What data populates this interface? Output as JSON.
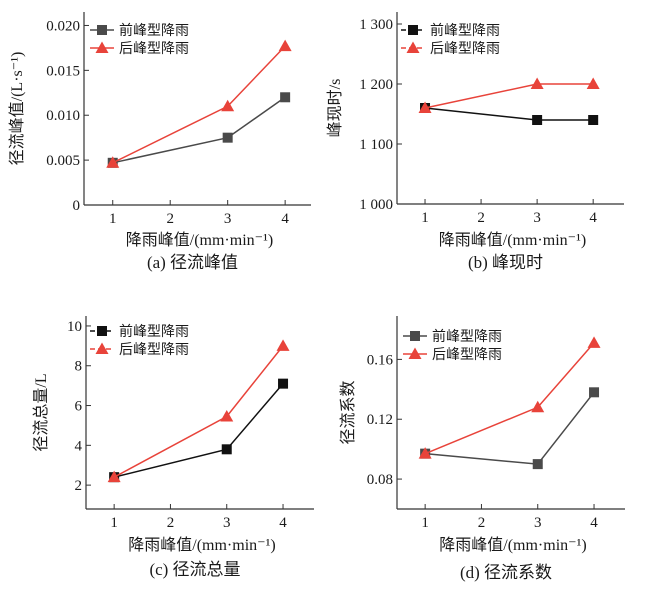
{
  "colors": {
    "front": "#4a4a4a",
    "front_dark": "#111111",
    "rear": "#e8433a"
  },
  "chart_data": [
    {
      "type": "line",
      "caption": "(a) 径流峰值",
      "xlabel": "降雨峰值/(mm·min⁻¹)",
      "ylabel": "径流峰值/(L·s⁻¹)",
      "x_ticks": [
        "1",
        "2",
        "3",
        "4"
      ],
      "y_ticks": [
        "0",
        "0.005",
        "0.010",
        "0.015",
        "0.020"
      ],
      "y_tick_values": [
        0,
        0.005,
        0.01,
        0.015,
        0.02
      ],
      "xlim": [
        0.5,
        4.45
      ],
      "ylim": [
        0,
        0.0215
      ],
      "legend": "top-left",
      "series": [
        {
          "name": "前峰型降雨",
          "marker": "square",
          "x": [
            1,
            3,
            4
          ],
          "values": [
            0.0047,
            0.0075,
            0.012
          ]
        },
        {
          "name": "后峰型降雨",
          "marker": "triangle",
          "x": [
            1,
            3,
            4
          ],
          "values": [
            0.0047,
            0.011,
            0.0177
          ]
        }
      ]
    },
    {
      "type": "line",
      "caption": "(b) 峰现时",
      "xlabel": "降雨峰值/(mm·min⁻¹)",
      "ylabel": "峰现时/s",
      "x_ticks": [
        "1",
        "2",
        "3",
        "4"
      ],
      "y_ticks": [
        "1 000",
        "1 100",
        "1 200",
        "1 300"
      ],
      "y_tick_values": [
        1000,
        1100,
        1200,
        1300
      ],
      "xlim": [
        0.5,
        4.55
      ],
      "ylim": [
        1000,
        1320
      ],
      "legend": "top-left",
      "series": [
        {
          "name": "前峰型降雨",
          "marker": "square",
          "x": [
            1,
            3,
            4
          ],
          "values": [
            1160,
            1140,
            1140
          ]
        },
        {
          "name": "后峰型降雨",
          "marker": "triangle",
          "x": [
            1,
            3,
            4
          ],
          "values": [
            1160,
            1200,
            1200
          ]
        }
      ]
    },
    {
      "type": "line",
      "caption": "(c) 径流总量",
      "xlabel": "降雨峰值/(mm·min⁻¹)",
      "ylabel": "径流总量/L",
      "x_ticks": [
        "1",
        "2",
        "3",
        "4"
      ],
      "y_ticks": [
        "2",
        "4",
        "6",
        "8",
        "10"
      ],
      "y_tick_values": [
        2,
        4,
        6,
        8,
        10
      ],
      "xlim": [
        0.5,
        4.55
      ],
      "ylim": [
        0.8,
        10.5
      ],
      "legend": "top-left",
      "series": [
        {
          "name": "前峰型降雨",
          "marker": "square",
          "x": [
            1,
            3,
            4
          ],
          "values": [
            2.4,
            3.8,
            7.1
          ]
        },
        {
          "name": "后峰型降雨",
          "marker": "triangle",
          "x": [
            1,
            3,
            4
          ],
          "values": [
            2.4,
            5.45,
            9.0
          ]
        }
      ]
    },
    {
      "type": "line",
      "caption": "(d) 径流系数",
      "xlabel": "降雨峰值/(mm·min⁻¹)",
      "ylabel": "径流系数",
      "x_ticks": [
        "1",
        "2",
        "3",
        "4"
      ],
      "y_ticks": [
        "0.08",
        "0.12",
        "0.16"
      ],
      "y_tick_values": [
        0.08,
        0.12,
        0.16
      ],
      "xlim": [
        0.5,
        4.55
      ],
      "ylim": [
        0.06,
        0.189
      ],
      "legend": "top-left",
      "series": [
        {
          "name": "前峰型降雨",
          "marker": "square",
          "x": [
            1,
            3,
            4
          ],
          "values": [
            0.097,
            0.09,
            0.138
          ]
        },
        {
          "name": "后峰型降雨",
          "marker": "triangle",
          "x": [
            1,
            3,
            4
          ],
          "values": [
            0.097,
            0.128,
            0.171
          ]
        }
      ]
    }
  ]
}
